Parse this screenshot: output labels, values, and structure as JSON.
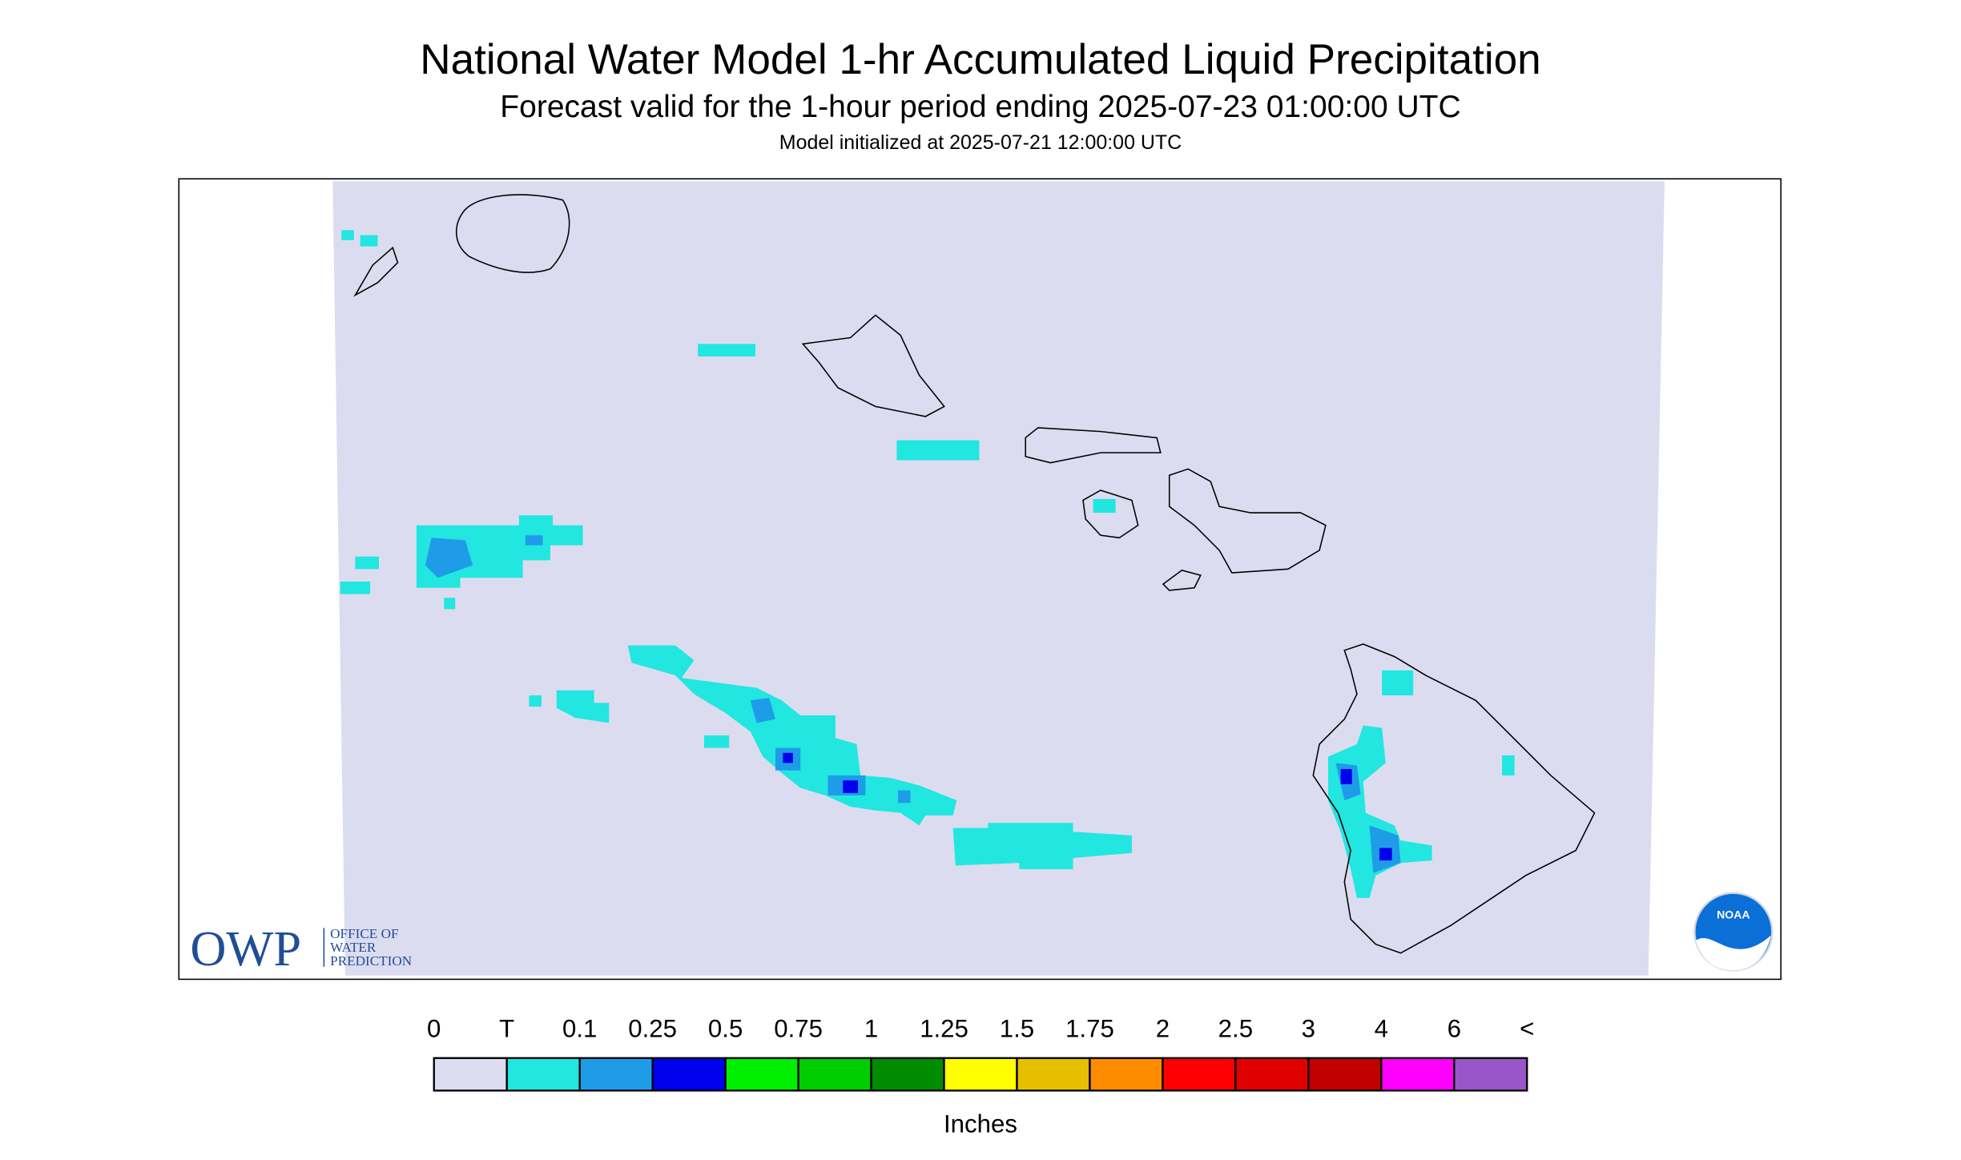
{
  "header": {
    "title": "National Water Model 1-hr Accumulated Liquid Precipitation",
    "subtitle": "Forecast valid for the 1-hour period ending 2025-07-23 01:00:00 UTC",
    "note": "Model initialized at 2025-07-21 12:00:00 UTC"
  },
  "legend": {
    "labels": [
      "0",
      "T",
      "0.1",
      "0.25",
      "0.5",
      "0.75",
      "1",
      "1.25",
      "1.5",
      "1.75",
      "2",
      "2.5",
      "3",
      "4",
      "6",
      "<"
    ],
    "colors": [
      "#dcdcf0",
      "#22e6e0",
      "#1e9ce8",
      "#0000ee",
      "#00ee00",
      "#00cd00",
      "#008b00",
      "#ffff00",
      "#e6c000",
      "#ff8c00",
      "#ff0000",
      "#e00000",
      "#c00000",
      "#ff00ff",
      "#9a55c8"
    ],
    "unit": "Inches"
  },
  "logos": {
    "owp": "OWP",
    "owp_lines": [
      "OFFICE OF",
      "WATER",
      "PREDICTION"
    ],
    "noaa": "NOAA"
  }
}
